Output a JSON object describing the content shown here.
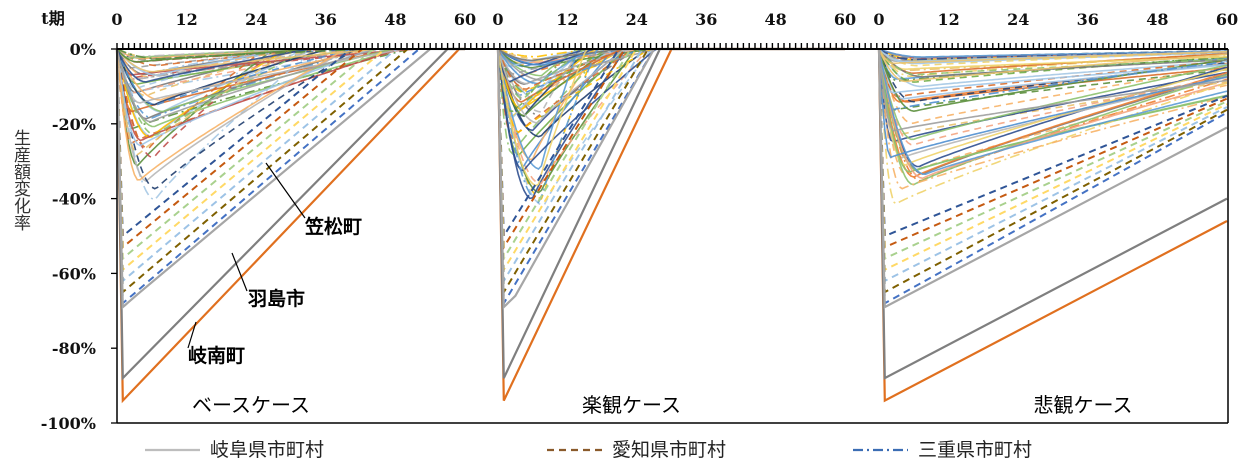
{
  "chart_data": {
    "type": "line",
    "ylabel": "生産額変化率",
    "xlabel": "t期",
    "xlim": [
      0,
      60
    ],
    "xticks": [
      "0",
      "12",
      "24",
      "36",
      "48",
      "60"
    ],
    "ylim": [
      -100,
      0
    ],
    "yticks": [
      "0%",
      "-20%",
      "-40%",
      "-60%",
      "-80%",
      "-100%"
    ],
    "panels": [
      {
        "name": "ベースケース",
        "annotations": [
          "笠松町",
          "羽島市",
          "岐南町"
        ],
        "series": [
          {
            "name": "岐南町",
            "values": [
              [
                0,
                0
              ],
              [
                1,
                -94
              ],
              [
                59,
                0
              ]
            ]
          },
          {
            "name": "羽島市",
            "values": [
              [
                0,
                0
              ],
              [
                1,
                -88
              ],
              [
                57,
                0
              ]
            ]
          },
          {
            "name": "笠松町",
            "values": [
              [
                0,
                0
              ],
              [
                1,
                -69
              ],
              [
                4,
                -65
              ],
              [
                54,
                0
              ]
            ]
          }
        ]
      },
      {
        "name": "楽観ケース",
        "series": [
          {
            "name": "岐南町",
            "values": [
              [
                0,
                0
              ],
              [
                1,
                -94
              ],
              [
                30,
                0
              ]
            ]
          },
          {
            "name": "羽島市",
            "values": [
              [
                0,
                0
              ],
              [
                1,
                -88
              ],
              [
                28,
                0
              ]
            ]
          },
          {
            "name": "笠松町",
            "values": [
              [
                0,
                0
              ],
              [
                1,
                -69
              ],
              [
                3,
                -66
              ],
              [
                27,
                0
              ]
            ]
          }
        ]
      },
      {
        "name": "悲観ケース",
        "series": [
          {
            "name": "岐南町",
            "values": [
              [
                0,
                0
              ],
              [
                1,
                -94
              ],
              [
                60,
                -46
              ]
            ]
          },
          {
            "name": "羽島市",
            "values": [
              [
                0,
                0
              ],
              [
                1,
                -88
              ],
              [
                60,
                -40
              ]
            ]
          },
          {
            "name": "笠松町",
            "values": [
              [
                0,
                0
              ],
              [
                1,
                -69
              ],
              [
                60,
                -21
              ]
            ]
          }
        ]
      }
    ],
    "legend": [
      {
        "label": "岐阜県市町村",
        "style": "solid",
        "color": "#bdbdbd"
      },
      {
        "label": "愛知県市町村",
        "style": "dashed",
        "color": "#8a5a2b"
      },
      {
        "label": "三重県市町村",
        "style": "dashdot",
        "color": "#3b6db4"
      }
    ],
    "legend_position": "bottom",
    "grid": false
  }
}
